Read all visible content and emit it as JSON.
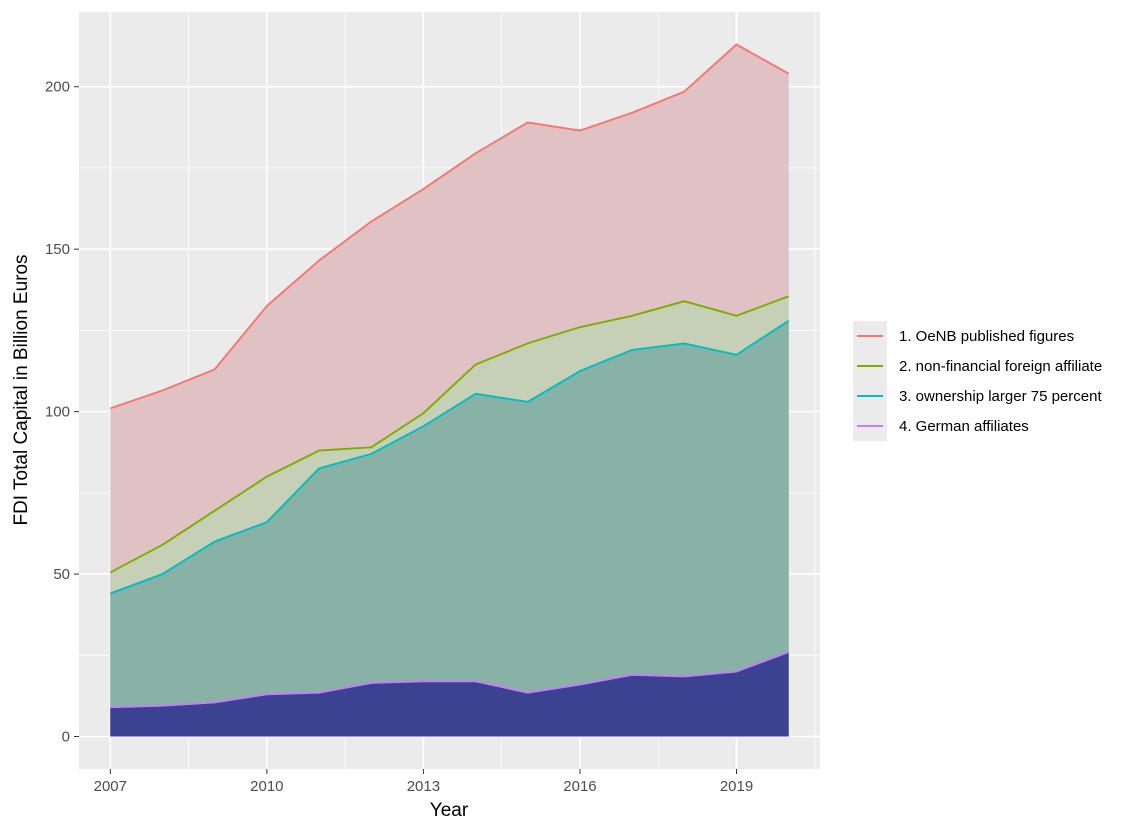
{
  "chart_data": {
    "type": "area",
    "title": "",
    "xlabel": "Year",
    "ylabel": "FDI Total Capital in Billion Euros",
    "x": [
      2007,
      2008,
      2009,
      2010,
      2011,
      2012,
      2013,
      2014,
      2015,
      2016,
      2017,
      2018,
      2019,
      2020
    ],
    "xlim": [
      2006.4,
      2020.6
    ],
    "ylim": [
      -10,
      223
    ],
    "x_ticks": [
      2007,
      2010,
      2013,
      2016,
      2019
    ],
    "x_tick_labels": [
      "2007",
      "2010",
      "2013",
      "2016",
      "2019"
    ],
    "y_ticks": [
      0,
      50,
      100,
      150,
      200
    ],
    "y_tick_labels": [
      "0",
      "50",
      "100",
      "150",
      "200"
    ],
    "grid": true,
    "legend": {
      "position": "right"
    },
    "series": [
      {
        "name": "1. OeNB published figures",
        "color": "#f8766d",
        "values": [
          101,
          106.5,
          113,
          132.5,
          146.5,
          158.5,
          168.5,
          179.5,
          189,
          186.5,
          192,
          198.5,
          213,
          204
        ]
      },
      {
        "name": "2. non-financial foreign affiliate",
        "color": "#7cae00",
        "values": [
          50.5,
          59,
          69.5,
          80,
          88,
          89,
          99.5,
          114.5,
          121,
          126,
          129.5,
          134,
          129.5,
          135.5
        ]
      },
      {
        "name": "3. ownership larger 75 percent",
        "color": "#00bfc4",
        "values": [
          44,
          50,
          60,
          66,
          82.5,
          87,
          95.5,
          105.5,
          103,
          112.5,
          119,
          121,
          117.5,
          128
        ]
      },
      {
        "name": "4. German affiliates",
        "color": "#c77cff",
        "values": [
          9,
          9.5,
          10.5,
          13,
          13.5,
          16.5,
          17,
          17,
          13.5,
          16,
          19,
          18.5,
          20,
          26
        ]
      }
    ],
    "area_fills": [
      "#e0c1c4",
      "#c6d0b6",
      "#88b2a6",
      "#3b4292"
    ]
  }
}
